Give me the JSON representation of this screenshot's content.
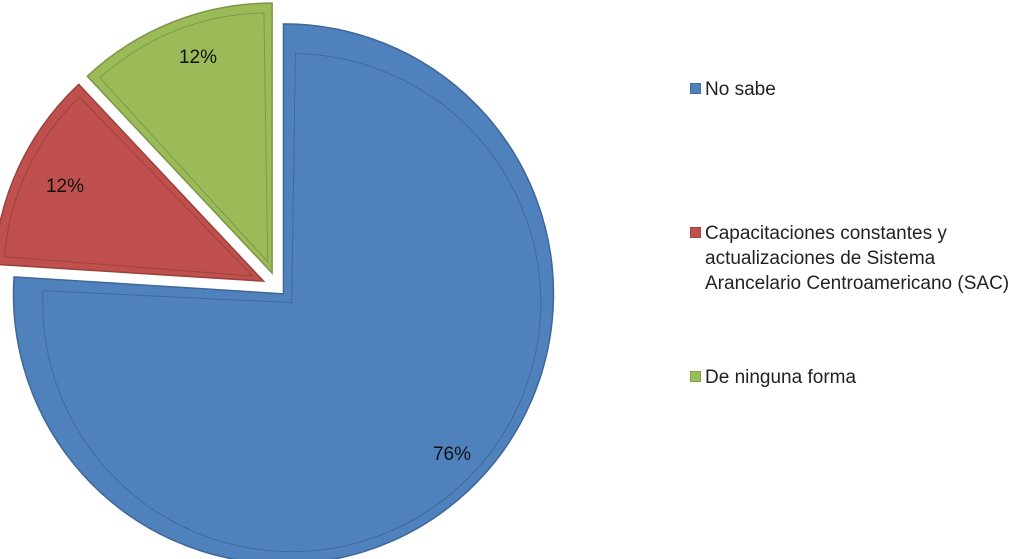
{
  "chart_data": {
    "type": "pie",
    "title": "",
    "exploded": true,
    "legend_position": "right",
    "series": [
      {
        "name": "No sabe",
        "value": 76,
        "label": "76%",
        "color": "#4F81BD"
      },
      {
        "name": "Capacitaciones constantes y actualizaciones de Sistema Arancelario Centroamericano (SAC)",
        "value": 12,
        "label": "12%",
        "color": "#C0504D"
      },
      {
        "name": "De ninguna forma",
        "value": 12,
        "label": "12%",
        "color": "#9BBB59"
      }
    ]
  },
  "legend": {
    "items": [
      {
        "label": "No sabe",
        "color": "#4F81BD"
      },
      {
        "label": "Capacitaciones constantes y actualizaciones de Sistema Arancelario Centroamericano (SAC)",
        "color": "#C0504D"
      },
      {
        "label": "De ninguna forma",
        "color": "#9BBB59"
      }
    ]
  }
}
